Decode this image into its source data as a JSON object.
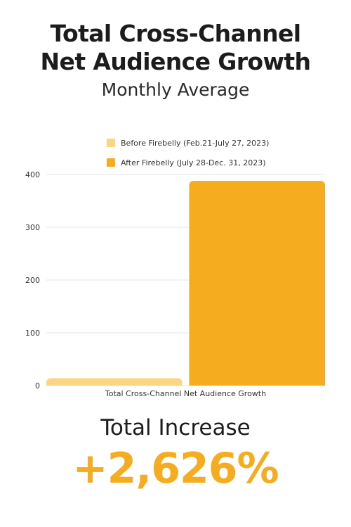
{
  "header": {
    "title_line_1": "Total Cross-Channel",
    "title_line_2": "Net Audience Growth",
    "subtitle": "Monthly Average"
  },
  "colors": {
    "before": "#fbd682",
    "after": "#f5ac1e",
    "grid": "#e6e6e6",
    "highlight": "#f5ac1e"
  },
  "chart_data": {
    "type": "bar",
    "categories": [
      "Total Cross-Channel Net Audience Growth"
    ],
    "series": [
      {
        "name": "Before Firebelly (Feb.21-July 27, 2023)",
        "values": [
          14
        ]
      },
      {
        "name": "After Firebelly (July 28-Dec. 31, 2023)",
        "values": [
          388
        ]
      }
    ],
    "yticks": [
      "0",
      "100",
      "200",
      "300",
      "400"
    ],
    "ylim": [
      0,
      400
    ],
    "grid": true,
    "legend": "top-center"
  },
  "summary": {
    "label": "Total Increase",
    "value": "+2,626%"
  }
}
